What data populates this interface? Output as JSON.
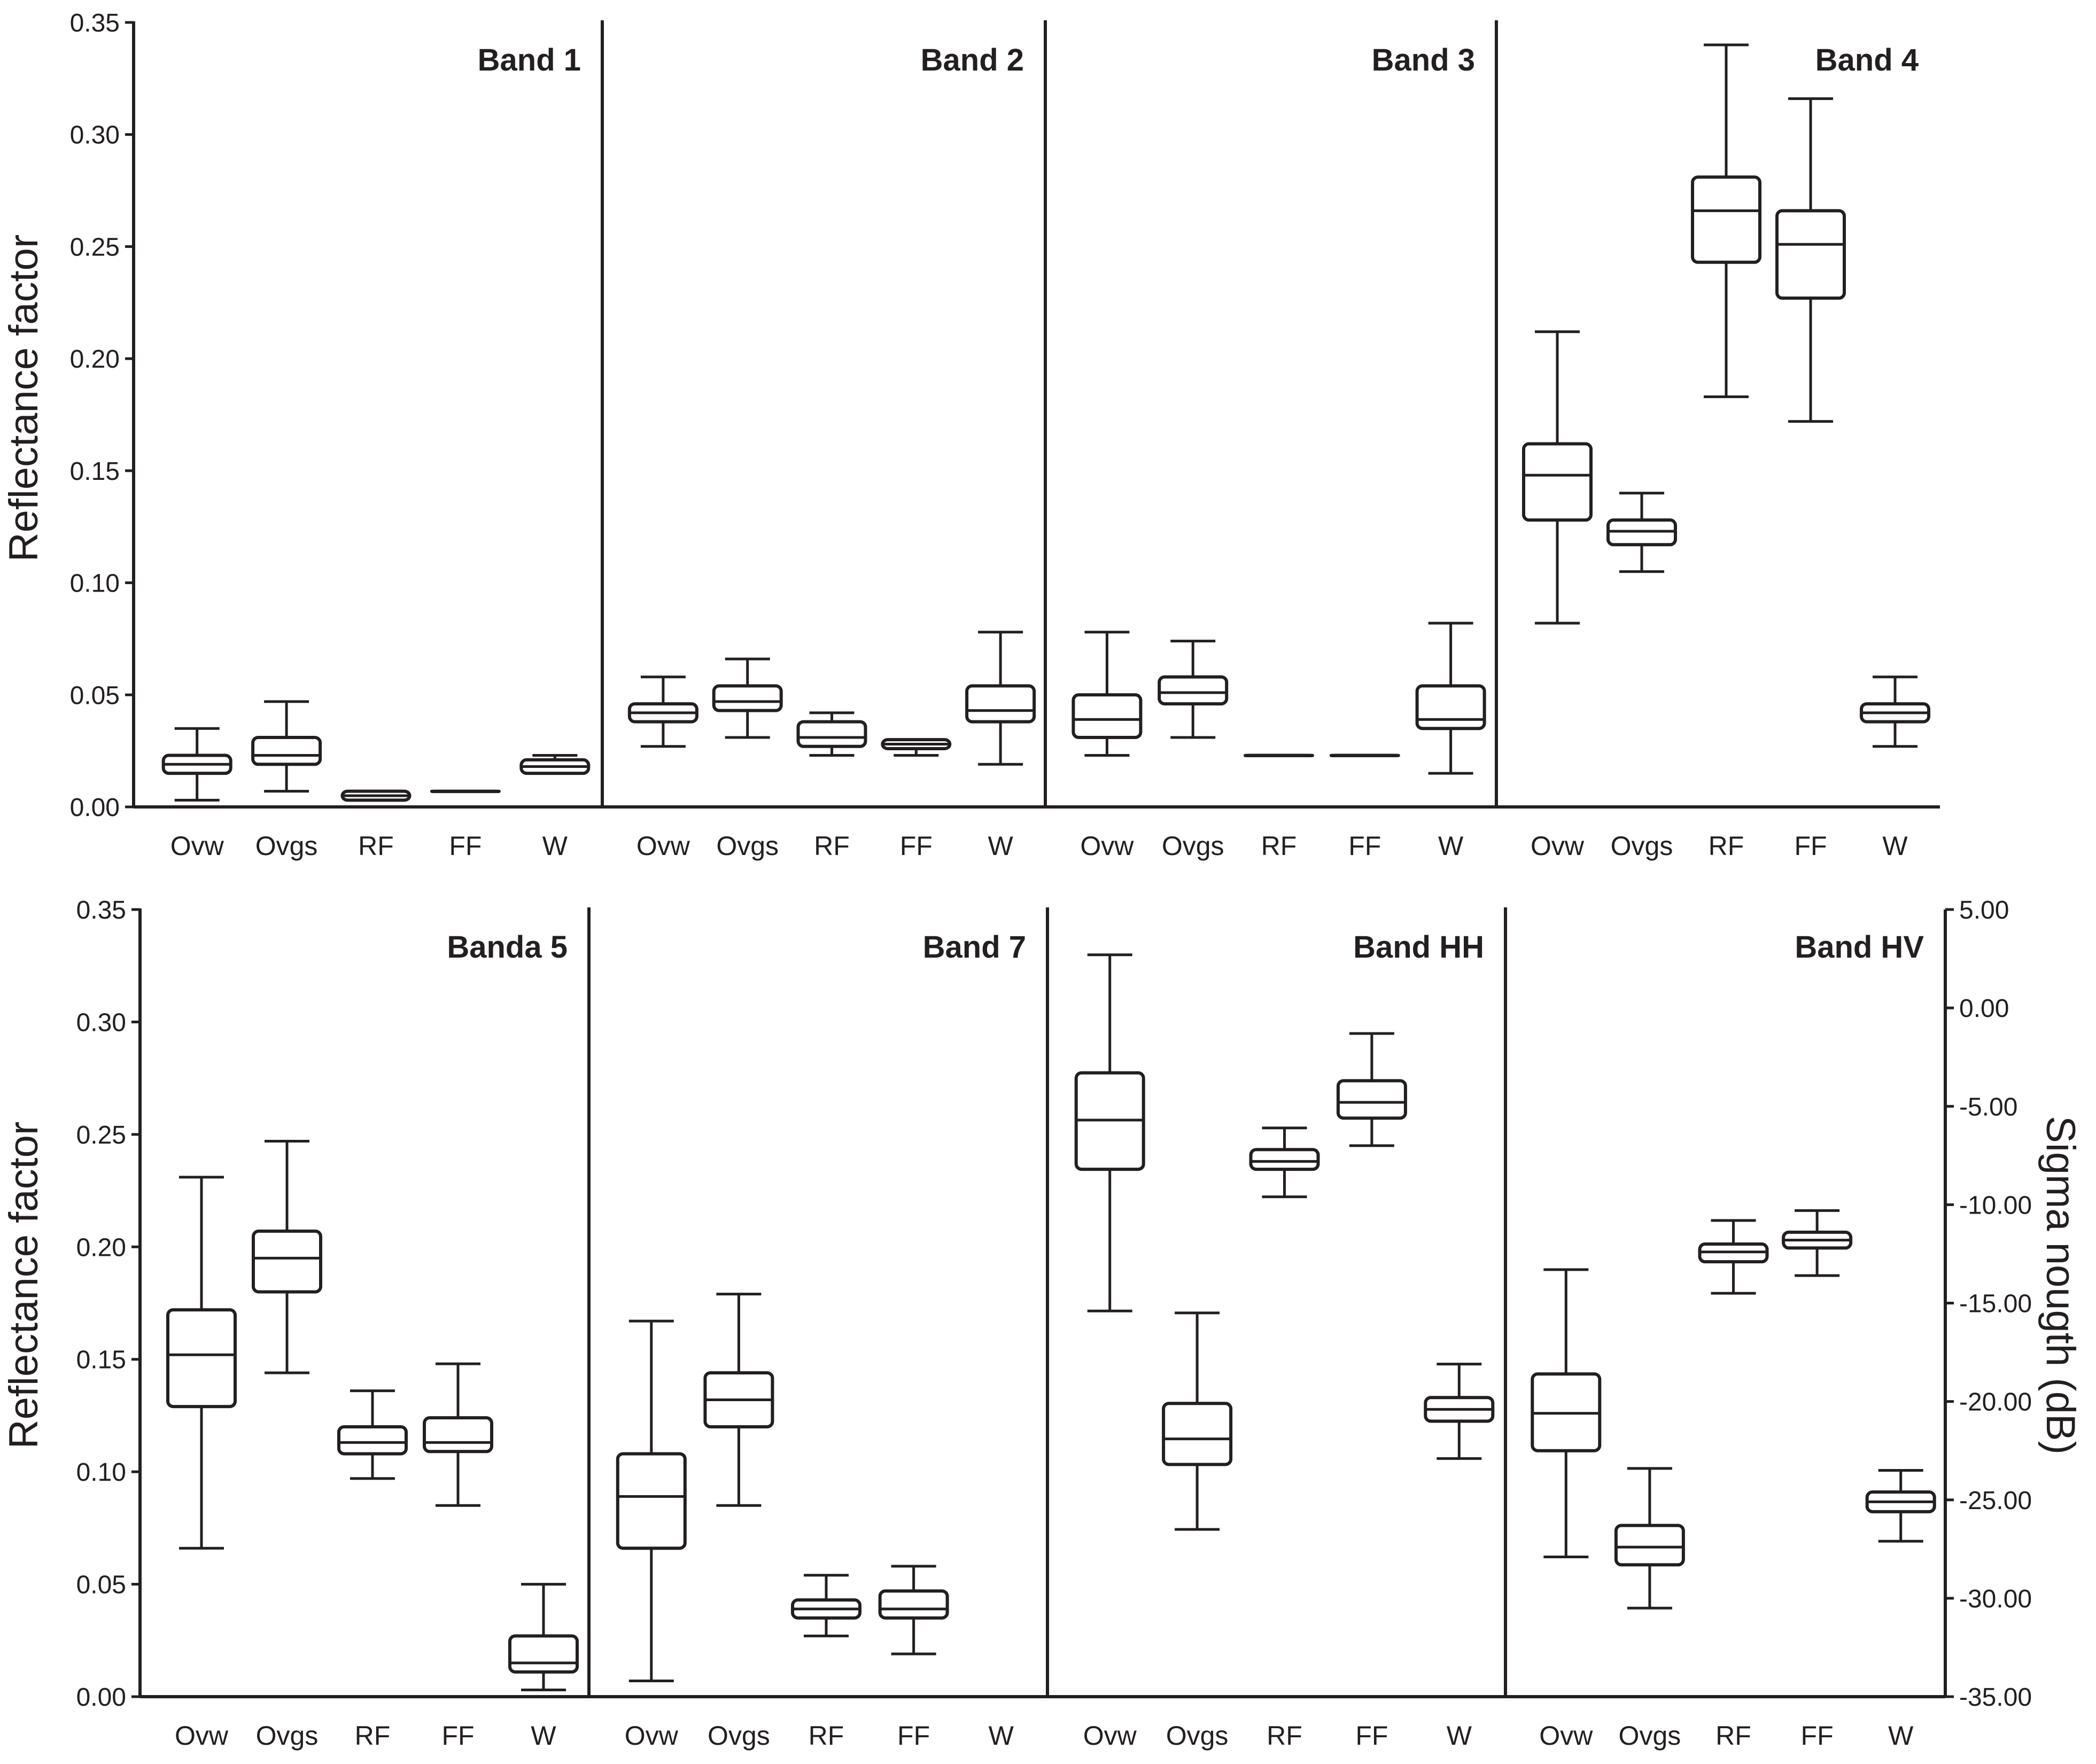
{
  "chart_data": [
    {
      "type": "boxplot",
      "ylabel": "Reflectance factor",
      "ylim": [
        0,
        0.35
      ],
      "yticks": [
        "0.00",
        "0.05",
        "0.10",
        "0.15",
        "0.20",
        "0.25",
        "0.30",
        "0.35"
      ],
      "categories": [
        "Ovw",
        "Ovgs",
        "RF",
        "FF",
        "W"
      ],
      "panels": [
        {
          "title": "Band 1",
          "boxes": [
            {
              "category": "Ovw",
              "min": 0.003,
              "q1": 0.015,
              "median": 0.019,
              "q3": 0.023,
              "max": 0.035
            },
            {
              "category": "Ovgs",
              "min": 0.007,
              "q1": 0.019,
              "median": 0.023,
              "q3": 0.031,
              "max": 0.047
            },
            {
              "category": "RF",
              "min": 0.003,
              "q1": 0.003,
              "median": 0.005,
              "q3": 0.007,
              "max": 0.007
            },
            {
              "category": "FF",
              "min": 0.007,
              "q1": 0.007,
              "median": 0.007,
              "q3": 0.007,
              "max": 0.007
            },
            {
              "category": "W",
              "min": 0.015,
              "q1": 0.015,
              "median": 0.018,
              "q3": 0.021,
              "max": 0.023
            }
          ]
        },
        {
          "title": "Band 2",
          "boxes": [
            {
              "category": "Ovw",
              "min": 0.027,
              "q1": 0.038,
              "median": 0.042,
              "q3": 0.046,
              "max": 0.058
            },
            {
              "category": "Ovgs",
              "min": 0.031,
              "q1": 0.043,
              "median": 0.047,
              "q3": 0.054,
              "max": 0.066
            },
            {
              "category": "RF",
              "min": 0.023,
              "q1": 0.027,
              "median": 0.031,
              "q3": 0.038,
              "max": 0.042
            },
            {
              "category": "FF",
              "min": 0.023,
              "q1": 0.026,
              "median": 0.028,
              "q3": 0.03,
              "max": 0.03
            },
            {
              "category": "W",
              "min": 0.019,
              "q1": 0.038,
              "median": 0.043,
              "q3": 0.054,
              "max": 0.078
            }
          ]
        },
        {
          "title": "Band 3",
          "boxes": [
            {
              "category": "Ovw",
              "min": 0.023,
              "q1": 0.031,
              "median": 0.039,
              "q3": 0.05,
              "max": 0.078
            },
            {
              "category": "Ovgs",
              "min": 0.031,
              "q1": 0.046,
              "median": 0.051,
              "q3": 0.058,
              "max": 0.074
            },
            {
              "category": "RF",
              "min": 0.023,
              "q1": 0.023,
              "median": 0.023,
              "q3": 0.023,
              "max": 0.023
            },
            {
              "category": "FF",
              "min": 0.023,
              "q1": 0.023,
              "median": 0.023,
              "q3": 0.023,
              "max": 0.023
            },
            {
              "category": "W",
              "min": 0.015,
              "q1": 0.035,
              "median": 0.039,
              "q3": 0.054,
              "max": 0.082
            }
          ]
        },
        {
          "title": "Band 4",
          "boxes": [
            {
              "category": "Ovw",
              "min": 0.082,
              "q1": 0.128,
              "median": 0.148,
              "q3": 0.162,
              "max": 0.212
            },
            {
              "category": "Ovgs",
              "min": 0.105,
              "q1": 0.117,
              "median": 0.123,
              "q3": 0.128,
              "max": 0.14
            },
            {
              "category": "RF",
              "min": 0.183,
              "q1": 0.243,
              "median": 0.266,
              "q3": 0.281,
              "max": 0.34
            },
            {
              "category": "FF",
              "min": 0.172,
              "q1": 0.227,
              "median": 0.251,
              "q3": 0.266,
              "max": 0.316
            },
            {
              "category": "W",
              "min": 0.027,
              "q1": 0.038,
              "median": 0.042,
              "q3": 0.046,
              "max": 0.058
            }
          ]
        },
        {
          "title": "Banda 5",
          "boxes": [
            {
              "category": "Ovw",
              "min": 0.066,
              "q1": 0.129,
              "median": 0.152,
              "q3": 0.172,
              "max": 0.231
            },
            {
              "category": "Ovgs",
              "min": 0.144,
              "q1": 0.18,
              "median": 0.195,
              "q3": 0.207,
              "max": 0.247
            },
            {
              "category": "RF",
              "min": 0.097,
              "q1": 0.108,
              "median": 0.113,
              "q3": 0.12,
              "max": 0.136
            },
            {
              "category": "FF",
              "min": 0.085,
              "q1": 0.109,
              "median": 0.113,
              "q3": 0.124,
              "max": 0.148
            },
            {
              "category": "W",
              "min": 0.003,
              "q1": 0.011,
              "median": 0.015,
              "q3": 0.027,
              "max": 0.05
            }
          ]
        },
        {
          "title": "Band 7",
          "boxes": [
            {
              "category": "Ovw",
              "min": 0.007,
              "q1": 0.066,
              "median": 0.089,
              "q3": 0.108,
              "max": 0.167
            },
            {
              "category": "Ovgs",
              "min": 0.085,
              "q1": 0.12,
              "median": 0.132,
              "q3": 0.144,
              "max": 0.179
            },
            {
              "category": "RF",
              "min": 0.027,
              "q1": 0.035,
              "median": 0.039,
              "q3": 0.043,
              "max": 0.054
            },
            {
              "category": "FF",
              "min": 0.019,
              "q1": 0.035,
              "median": 0.039,
              "q3": 0.047,
              "max": 0.058
            }
          ]
        }
      ]
    },
    {
      "type": "boxplot",
      "ylabel": "Sigma nougth (dB)",
      "axis_side": "right",
      "ylim": [
        -35,
        5
      ],
      "yticks": [
        "5.00",
        "0.00",
        "-5.00",
        "-10.00",
        "-15.00",
        "-20.00",
        "-25.00",
        "-30.00",
        "-35.00"
      ],
      "categories": [
        "Ovw",
        "Ovgs",
        "RF",
        "FF",
        "W"
      ],
      "panels": [
        {
          "title": "Band HH",
          "boxes": [
            {
              "category": "Ovw",
              "min": -15.4,
              "q1": -8.2,
              "median": -5.7,
              "q3": -3.3,
              "max": 2.7
            },
            {
              "category": "Ovgs",
              "min": -26.5,
              "q1": -23.2,
              "median": -21.9,
              "q3": -20.1,
              "max": -15.5
            },
            {
              "category": "RF",
              "min": -9.6,
              "q1": -8.2,
              "median": -7.8,
              "q3": -7.2,
              "max": -6.1
            },
            {
              "category": "FF",
              "min": -7.0,
              "q1": -5.6,
              "median": -4.8,
              "q3": -3.7,
              "max": -1.3
            },
            {
              "category": "W",
              "min": -22.9,
              "q1": -21.0,
              "median": -20.4,
              "q3": -19.8,
              "max": -18.1
            }
          ]
        },
        {
          "title": "Band HV",
          "boxes": [
            {
              "category": "Ovw",
              "min": -27.9,
              "q1": -22.5,
              "median": -20.6,
              "q3": -18.6,
              "max": -13.3
            },
            {
              "category": "Ovgs",
              "min": -30.5,
              "q1": -28.3,
              "median": -27.4,
              "q3": -26.3,
              "max": -23.4
            },
            {
              "category": "RF",
              "min": -14.5,
              "q1": -12.9,
              "median": -12.4,
              "q3": -12.0,
              "max": -10.8
            },
            {
              "category": "FF",
              "min": -13.6,
              "q1": -12.2,
              "median": -11.8,
              "q3": -11.4,
              "max": -10.3
            },
            {
              "category": "W",
              "min": -27.1,
              "q1": -25.6,
              "median": -25.1,
              "q3": -24.6,
              "max": -23.5
            }
          ]
        }
      ]
    }
  ]
}
